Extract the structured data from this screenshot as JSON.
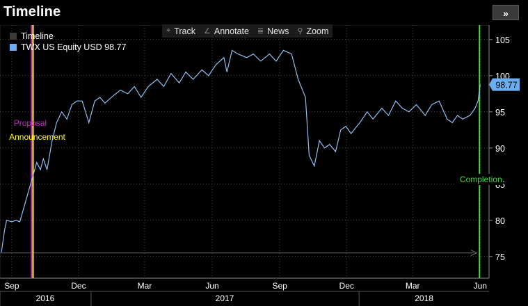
{
  "window": {
    "title": "Timeline",
    "expand_icon": "double-chevron-right-icon"
  },
  "toolbar": {
    "items": [
      {
        "label": "Track",
        "icon": "crosshair-icon",
        "glyph": "⌖"
      },
      {
        "label": "Annotate",
        "icon": "pencil-icon",
        "glyph": "∠"
      },
      {
        "label": "News",
        "icon": "news-icon",
        "glyph": "≣"
      },
      {
        "label": "Zoom",
        "icon": "magnifier-icon",
        "glyph": "⚲"
      }
    ]
  },
  "legend": {
    "items": [
      {
        "label": "Timeline",
        "color": "#3a3a3a"
      },
      {
        "label": "TWX US Equity USD 98.77",
        "color": "#6aaef0"
      }
    ]
  },
  "colors": {
    "line": "#8ec0f0",
    "grid": "#3a3a3a",
    "proposal": "#d020d0",
    "announcement": "#ffff00",
    "completion": "#3fd93f",
    "last_price_bg": "#6aaef0"
  },
  "chart_data": {
    "type": "line",
    "series": [
      {
        "name": "TWX US Equity USD 98.77",
        "points": [
          [
            "2016-09-01",
            75.6
          ],
          [
            "2016-09-05",
            78.5
          ],
          [
            "2016-09-08",
            80.0
          ],
          [
            "2016-09-15",
            79.8
          ],
          [
            "2016-09-21",
            80.0
          ],
          [
            "2016-09-26",
            79.8
          ],
          [
            "2016-10-19",
            88.0
          ],
          [
            "2016-10-24",
            87.0
          ],
          [
            "2016-10-28",
            88.5
          ],
          [
            "2016-11-02",
            87.0
          ],
          [
            "2016-11-09",
            91.0
          ],
          [
            "2016-11-15",
            93.5
          ],
          [
            "2016-11-22",
            95.0
          ],
          [
            "2016-11-29",
            94.0
          ],
          [
            "2016-12-06",
            96.0
          ],
          [
            "2016-12-13",
            96.5
          ],
          [
            "2016-12-20",
            96.5
          ],
          [
            "2016-12-29",
            93.5
          ],
          [
            "2017-01-06",
            96.5
          ],
          [
            "2017-01-13",
            97.0
          ],
          [
            "2017-01-20",
            96.2
          ],
          [
            "2017-02-01",
            97.3
          ],
          [
            "2017-02-10",
            98.0
          ],
          [
            "2017-02-20",
            97.5
          ],
          [
            "2017-03-01",
            98.5
          ],
          [
            "2017-03-10",
            97.0
          ],
          [
            "2017-03-20",
            98.5
          ],
          [
            "2017-04-01",
            99.5
          ],
          [
            "2017-04-10",
            98.5
          ],
          [
            "2017-04-20",
            100.3
          ],
          [
            "2017-05-01",
            99.0
          ],
          [
            "2017-05-10",
            100.5
          ],
          [
            "2017-05-20",
            99.5
          ],
          [
            "2017-06-01",
            100.8
          ],
          [
            "2017-06-10",
            100.0
          ],
          [
            "2017-06-20",
            101.5
          ],
          [
            "2017-07-01",
            102.5
          ],
          [
            "2017-07-05",
            100.5
          ],
          [
            "2017-07-12",
            103.5
          ],
          [
            "2017-07-20",
            103.0
          ],
          [
            "2017-08-01",
            102.5
          ],
          [
            "2017-08-10",
            103.0
          ],
          [
            "2017-08-20",
            102.0
          ],
          [
            "2017-09-01",
            103.0
          ],
          [
            "2017-09-10",
            102.0
          ],
          [
            "2017-09-20",
            103.5
          ],
          [
            "2017-10-01",
            103.0
          ],
          [
            "2017-10-10",
            99.5
          ],
          [
            "2017-10-20",
            97.0
          ],
          [
            "2017-10-25",
            89.0
          ],
          [
            "2017-11-01",
            87.5
          ],
          [
            "2017-11-08",
            91.0
          ],
          [
            "2017-11-15",
            90.0
          ],
          [
            "2017-11-22",
            90.5
          ],
          [
            "2017-11-30",
            89.5
          ],
          [
            "2017-12-07",
            92.5
          ],
          [
            "2017-12-14",
            93.0
          ],
          [
            "2017-12-21",
            92.0
          ],
          [
            "2018-01-02",
            93.5
          ],
          [
            "2018-01-12",
            95.0
          ],
          [
            "2018-01-20",
            94.0
          ],
          [
            "2018-02-01",
            95.5
          ],
          [
            "2018-02-10",
            94.5
          ],
          [
            "2018-02-20",
            96.5
          ],
          [
            "2018-03-01",
            95.5
          ],
          [
            "2018-03-10",
            95.0
          ],
          [
            "2018-03-20",
            96.0
          ],
          [
            "2018-04-01",
            94.5
          ],
          [
            "2018-04-10",
            96.0
          ],
          [
            "2018-04-20",
            96.5
          ],
          [
            "2018-05-01",
            94.0
          ],
          [
            "2018-05-08",
            93.5
          ],
          [
            "2018-05-15",
            94.5
          ],
          [
            "2018-05-22",
            94.0
          ],
          [
            "2018-06-01",
            94.5
          ],
          [
            "2018-06-08",
            95.5
          ],
          [
            "2018-06-12",
            96.5
          ],
          [
            "2018-06-15",
            98.77
          ]
        ]
      }
    ],
    "y_ticks": [
      75,
      80,
      85,
      90,
      95,
      100,
      105
    ],
    "ylim": [
      72,
      107
    ],
    "xlim": [
      "2016-08-30",
      "2018-06-27"
    ],
    "x_month_ticks": [
      {
        "label": "Sep",
        "date": "2016-09-15"
      },
      {
        "label": "Dec",
        "date": "2016-12-15"
      },
      {
        "label": "Mar",
        "date": "2017-03-15"
      },
      {
        "label": "Jun",
        "date": "2017-06-15"
      },
      {
        "label": "Sep",
        "date": "2017-09-15"
      },
      {
        "label": "Dec",
        "date": "2017-12-15"
      },
      {
        "label": "Mar",
        "date": "2018-03-15"
      },
      {
        "label": "Jun",
        "date": "2018-06-15"
      }
    ],
    "x_year_labels": [
      {
        "label": "2016",
        "from": "2016-08-30",
        "to": "2016-12-31"
      },
      {
        "label": "2017",
        "from": "2017-01-01",
        "to": "2017-12-31"
      },
      {
        "label": "2018",
        "from": "2018-01-01",
        "to": "2018-06-27"
      }
    ],
    "last_price": {
      "label": "98.77",
      "value": 98.77
    },
    "events": [
      {
        "label": "Proposal",
        "date": "2016-10-12",
        "color": "#d020d0"
      },
      {
        "label": "Announcement",
        "date": "2016-10-14",
        "color": "#ffff00"
      },
      {
        "label": "Completion",
        "date": "2018-06-14",
        "color": "#3fd93f"
      }
    ],
    "reference_line": {
      "value": 75.5
    },
    "grid": true,
    "grid_style": "dotted"
  }
}
